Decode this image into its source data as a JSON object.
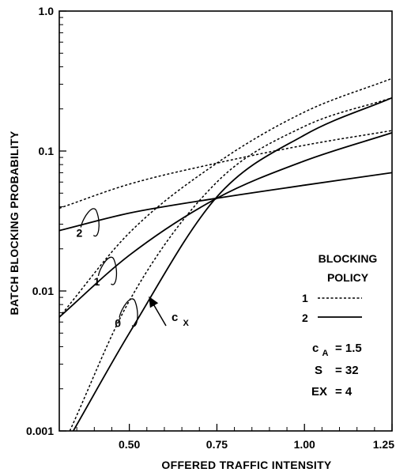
{
  "chart_data": {
    "type": "line",
    "xlabel": "OFFERED TRAFFIC INTENSITY",
    "ylabel": "BATCH BLOCKING PROBABILITY",
    "xlim": [
      0.3,
      1.25
    ],
    "ylim": [
      0.001,
      1.0
    ],
    "yscale": "log",
    "x_ticks": [
      {
        "value": 0.5,
        "label": "0.50"
      },
      {
        "value": 0.75,
        "label": "0.75"
      },
      {
        "value": 1.0,
        "label": "1.00"
      },
      {
        "value": 1.25,
        "label": "1.25"
      }
    ],
    "y_ticks": [
      {
        "value": 0.001,
        "label": "0.001"
      },
      {
        "value": 0.01,
        "label": "0.01"
      },
      {
        "value": 0.1,
        "label": "0.1"
      },
      {
        "value": 1.0,
        "label": "1.0"
      }
    ],
    "grid": false,
    "series": [
      {
        "policy": "1",
        "cx": "2",
        "style": "dashed",
        "x": [
          0.3,
          0.5,
          0.75,
          1.0,
          1.25
        ],
        "y": [
          0.039,
          0.058,
          0.082,
          0.11,
          0.14
        ]
      },
      {
        "policy": "2",
        "cx": "2",
        "style": "solid",
        "x": [
          0.3,
          0.5,
          0.75,
          1.0,
          1.25
        ],
        "y": [
          0.027,
          0.036,
          0.046,
          0.057,
          0.07
        ]
      },
      {
        "policy": "1",
        "cx": "1",
        "style": "dashed",
        "x": [
          0.3,
          0.5,
          0.75,
          1.0,
          1.25
        ],
        "y": [
          0.0065,
          0.026,
          0.082,
          0.19,
          0.33
        ]
      },
      {
        "policy": "2",
        "cx": "1",
        "style": "solid",
        "x": [
          0.3,
          0.5,
          0.75,
          1.0,
          1.25
        ],
        "y": [
          0.0065,
          0.018,
          0.046,
          0.085,
          0.135
        ]
      },
      {
        "policy": "1",
        "cx": "0",
        "style": "dashed",
        "x": [
          0.33,
          0.5,
          0.75,
          1.0,
          1.25
        ],
        "y": [
          0.001,
          0.0085,
          0.06,
          0.15,
          0.24
        ]
      },
      {
        "policy": "2",
        "cx": "0",
        "style": "solid",
        "x": [
          0.34,
          0.5,
          0.75,
          1.0,
          1.25
        ],
        "y": [
          0.001,
          0.005,
          0.047,
          0.13,
          0.24
        ]
      }
    ],
    "curve_labels": [
      {
        "text": "2",
        "x": 0.4,
        "y": 0.03
      },
      {
        "text": "1",
        "x": 0.45,
        "y": 0.0135
      },
      {
        "text": "0",
        "x": 0.51,
        "y": 0.0068
      }
    ],
    "cx_label": {
      "main": "c",
      "sub": "X"
    },
    "legend": {
      "title_line1": "BLOCKING",
      "title_line2": "POLICY",
      "entries": [
        {
          "label": "1",
          "style": "dashed"
        },
        {
          "label": "2",
          "style": "solid"
        }
      ]
    },
    "parameters": [
      {
        "name": "c",
        "sub": "A",
        "value": "= 1.5"
      },
      {
        "name": "S",
        "sub": "",
        "value": "= 32"
      },
      {
        "name": "EX",
        "sub": "",
        "value": "= 4"
      }
    ]
  }
}
